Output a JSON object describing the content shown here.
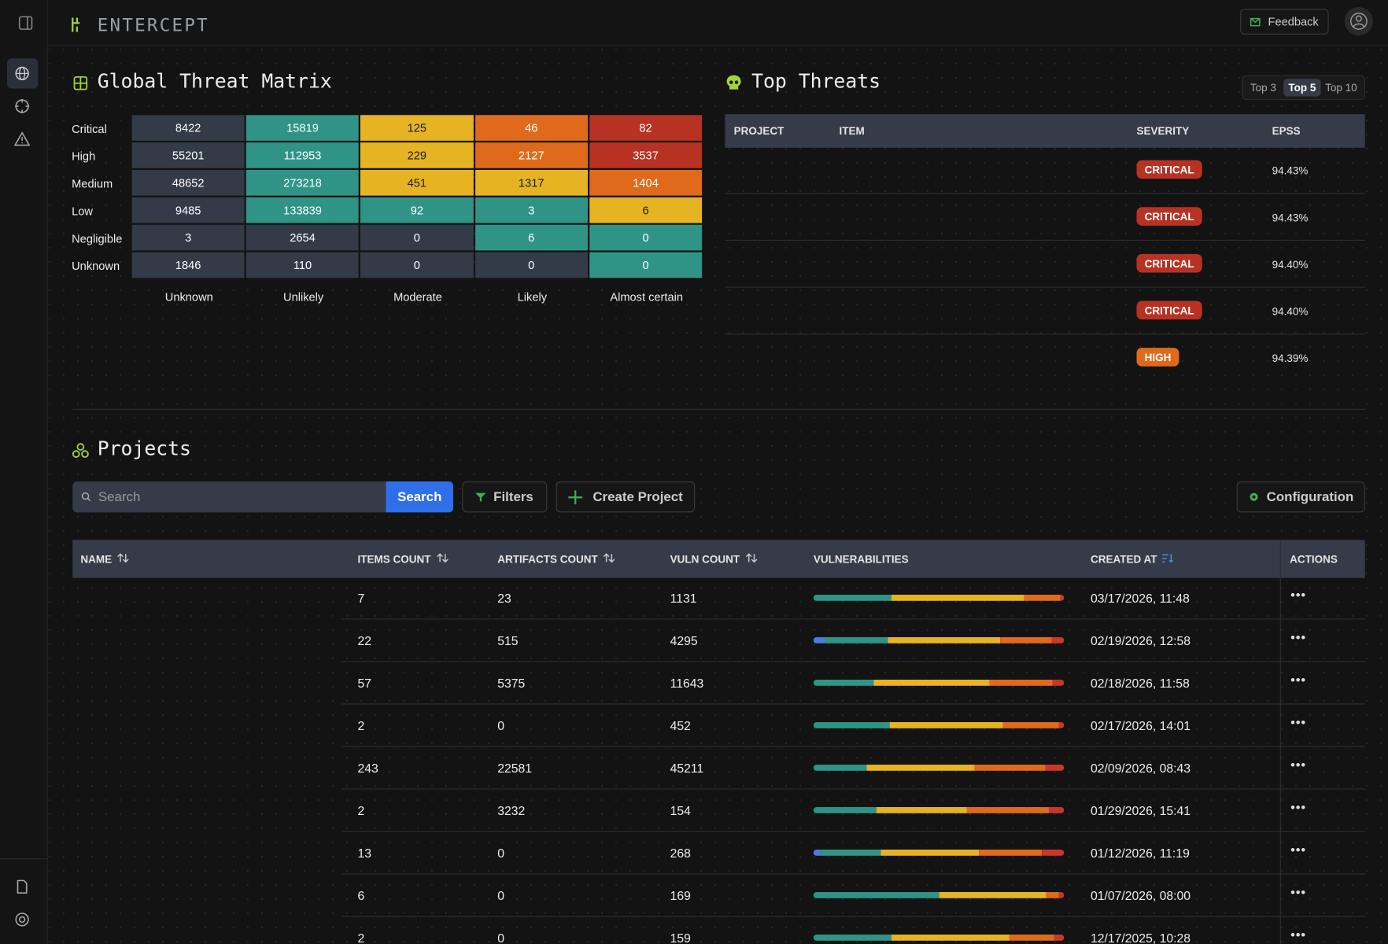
{
  "header": {
    "brand": "ENTERCEPT",
    "feedback": "Feedback"
  },
  "threat_matrix": {
    "title": "Global Threat Matrix",
    "rows": [
      "Critical",
      "High",
      "Medium",
      "Low",
      "Negligible",
      "Unknown"
    ],
    "columns": [
      "Unknown",
      "Unlikely",
      "Moderate",
      "Likely",
      "Almost certain"
    ],
    "values": [
      [
        8422,
        15819,
        125,
        46,
        82
      ],
      [
        55201,
        112953,
        229,
        2127,
        3537
      ],
      [
        48652,
        273218,
        451,
        1317,
        1404
      ],
      [
        9485,
        133839,
        92,
        3,
        6
      ],
      [
        3,
        2654,
        0,
        6,
        0
      ],
      [
        1846,
        110,
        0,
        0,
        0
      ]
    ],
    "colors": [
      [
        "#333a48",
        "#2f9486",
        "#e6b422",
        "#e06a1c",
        "#b83224"
      ],
      [
        "#333a48",
        "#2f9486",
        "#e6b422",
        "#e06a1c",
        "#b83224"
      ],
      [
        "#333a48",
        "#2f9486",
        "#e6b422",
        "#e6b422",
        "#e06a1c"
      ],
      [
        "#333a48",
        "#2f9486",
        "#2f9486",
        "#2f9486",
        "#e6b422"
      ],
      [
        "#333a48",
        "#333a48",
        "#333a48",
        "#2f9486",
        "#2f9486"
      ],
      [
        "#333a48",
        "#333a48",
        "#333a48",
        "#333a48",
        "#2f9486"
      ]
    ]
  },
  "top_threats": {
    "title": "Top Threats",
    "tabs": [
      "Top 3",
      "Top 5",
      "Top 10"
    ],
    "active_tab": 1,
    "columns": [
      "PROJECT",
      "ITEM",
      "SEVERITY",
      "EPSS"
    ],
    "rows": [
      {
        "severity": "CRITICAL",
        "severity_color": "#b83224",
        "epss": "94.43%"
      },
      {
        "severity": "CRITICAL",
        "severity_color": "#b83224",
        "epss": "94.43%"
      },
      {
        "severity": "CRITICAL",
        "severity_color": "#b83224",
        "epss": "94.40%"
      },
      {
        "severity": "CRITICAL",
        "severity_color": "#b83224",
        "epss": "94.40%"
      },
      {
        "severity": "HIGH",
        "severity_color": "#e06a1c",
        "epss": "94.39%"
      }
    ]
  },
  "projects": {
    "title": "Projects",
    "search_placeholder": "Search",
    "search_button": "Search",
    "filters": "Filters",
    "create": "Create Project",
    "configuration": "Configuration",
    "columns": [
      "NAME",
      "ITEMS COUNT",
      "ARTIFACTS COUNT",
      "VULN COUNT",
      "VULNERABILITIES",
      "CREATED AT",
      "ACTIONS"
    ],
    "segment_colors": [
      "#4a7be0",
      "#2f9486",
      "#e6b422",
      "#e06a1c",
      "#c9372c"
    ],
    "rows": [
      {
        "items": 7,
        "artifacts": 23,
        "vuln_count": 1131,
        "vulnerabilities": [
          0,
          31,
          53,
          14.5,
          1.5
        ],
        "created_at": "03/17/2026, 11:48"
      },
      {
        "items": 22,
        "artifacts": 515,
        "vuln_count": 4295,
        "vulnerabilities": [
          4.6,
          25,
          45,
          20.5,
          5
        ],
        "created_at": "02/19/2026, 12:58"
      },
      {
        "items": 57,
        "artifacts": 5375,
        "vuln_count": 11643,
        "vulnerabilities": [
          0,
          24,
          46.6,
          25,
          4.6
        ],
        "created_at": "02/18/2026, 11:58"
      },
      {
        "items": 2,
        "artifacts": 0,
        "vuln_count": 452,
        "vulnerabilities": [
          0,
          30,
          45,
          22,
          2
        ],
        "created_at": "02/17/2026, 14:01"
      },
      {
        "items": 243,
        "artifacts": 22581,
        "vuln_count": 45211,
        "vulnerabilities": [
          0,
          21,
          43,
          28,
          7.5
        ],
        "created_at": "02/09/2026, 08:43"
      },
      {
        "items": 2,
        "artifacts": 3232,
        "vuln_count": 154,
        "vulnerabilities": [
          0,
          25,
          36,
          33,
          6
        ],
        "created_at": "01/29/2026, 15:41"
      },
      {
        "items": 13,
        "artifacts": 0,
        "vuln_count": 268,
        "vulnerabilities": [
          3,
          24,
          39,
          25,
          9
        ],
        "created_at": "01/12/2026, 11:19"
      },
      {
        "items": 6,
        "artifacts": 0,
        "vuln_count": 169,
        "vulnerabilities": [
          0,
          50,
          43,
          5,
          2
        ],
        "created_at": "01/07/2026, 08:00"
      },
      {
        "items": 2,
        "artifacts": 0,
        "vuln_count": 159,
        "vulnerabilities": [
          0,
          31,
          47,
          18,
          4
        ],
        "created_at": "12/17/2025, 10:28"
      }
    ]
  }
}
